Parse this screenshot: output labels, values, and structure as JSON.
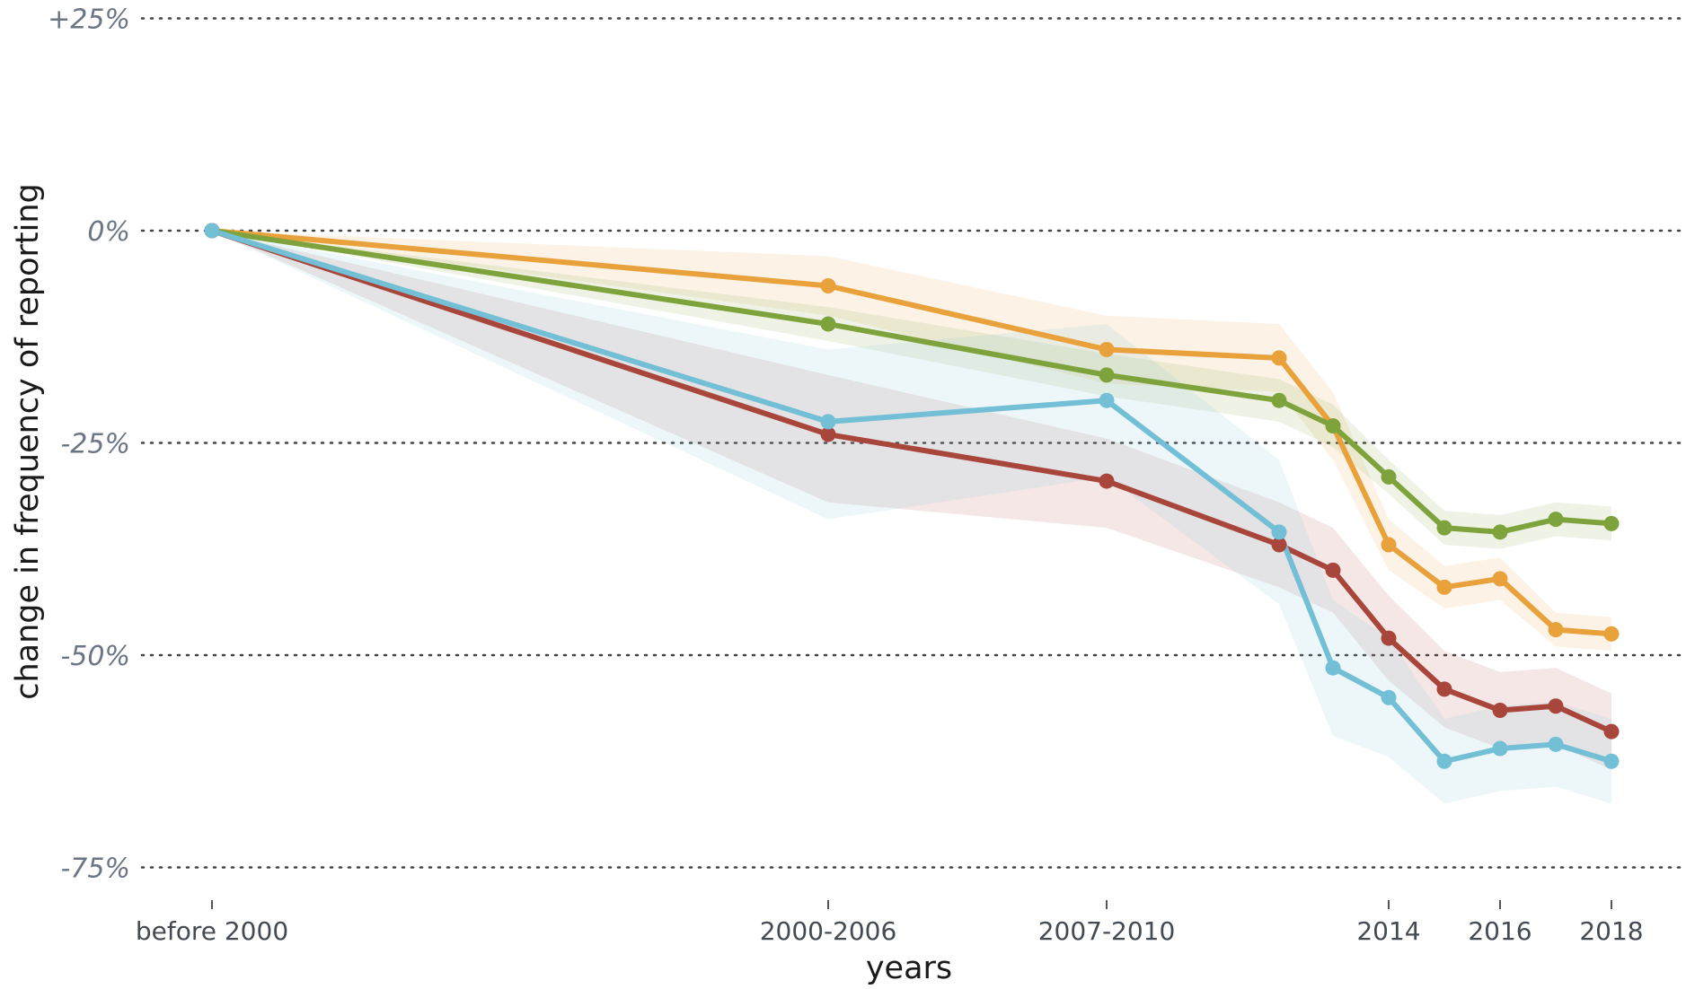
{
  "chart_data": {
    "type": "line",
    "title": "",
    "xlabel": "years",
    "ylabel": "change in frequency of reporting",
    "ylim": [
      -75,
      25
    ],
    "y_ticks": [
      "+25%",
      "0%",
      "-25%",
      "-50%",
      "-75%"
    ],
    "y_tick_values": [
      25,
      0,
      -25,
      -50,
      -75
    ],
    "grid": "horizontal dotted lines at y ticks",
    "legend": "none",
    "x_tick_labels": [
      "before 2000",
      "2000-2006",
      "2007-2010",
      "2014",
      "2016",
      "2018"
    ],
    "x_tick_values": [
      1995,
      2006,
      2011,
      2014,
      2016,
      2018
    ],
    "x": [
      1995,
      2006,
      2011,
      2012,
      2013,
      2014,
      2015,
      2016,
      2017,
      2018
    ],
    "series": [
      {
        "color": "#e8a13b",
        "values": [
          0,
          -6.5,
          -14,
          -15,
          -23,
          -37,
          -42,
          -41,
          -47,
          -47.5
        ],
        "lower": [
          0,
          -10,
          -18,
          -19,
          -27,
          -40,
          -44.5,
          -43.5,
          -49,
          -49.5
        ],
        "upper": [
          0,
          -3,
          -10,
          -11,
          -19,
          -34,
          -39.5,
          -38.5,
          -45,
          -45.5
        ]
      },
      {
        "color": "#7fa33c",
        "values": [
          0,
          -11,
          -17,
          -20,
          -23,
          -29,
          -35,
          -35.5,
          -34,
          -34.5
        ],
        "lower": [
          0,
          -13,
          -19.5,
          -22.5,
          -25.5,
          -31,
          -37,
          -37.5,
          -36,
          -36.5
        ],
        "upper": [
          0,
          -9,
          -14.5,
          -17.5,
          -20.5,
          -27,
          -33,
          -33.5,
          -32,
          -32.5
        ]
      },
      {
        "color": "#a8463b",
        "values": [
          0,
          -24,
          -29.5,
          -37,
          -40,
          -48,
          -54,
          -56.5,
          -56,
          -59
        ],
        "lower": [
          0,
          -32,
          -35,
          -42,
          -45,
          -53,
          -58.5,
          -61,
          -60.5,
          -63.5
        ],
        "upper": [
          0,
          -17,
          -24.5,
          -32,
          -35,
          -43,
          -49.5,
          -52,
          -51.5,
          -54.5
        ]
      },
      {
        "color": "#72bfd6",
        "values": [
          0,
          -22.5,
          -20,
          -35.5,
          -51.5,
          -55,
          -62.5,
          -61,
          -60.5,
          -62.5
        ],
        "lower": [
          0,
          -34,
          -29,
          -44,
          -59.5,
          -62,
          -67.5,
          -66,
          -65.5,
          -67.5
        ],
        "upper": [
          0,
          -14,
          -11,
          -27,
          -43.5,
          -48,
          -57.5,
          -56,
          -55.5,
          -57.5
        ]
      }
    ]
  }
}
